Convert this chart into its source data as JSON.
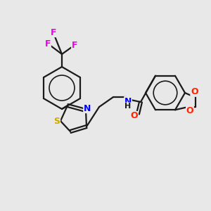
{
  "background_color": "#e8e8e8",
  "bond_color": "#1a1a1a",
  "atom_colors": {
    "F": "#ee00ee",
    "S": "#ccaa00",
    "N": "#0000ff",
    "O": "#ff2200",
    "C": "#1a1a1a"
  },
  "lw": 1.6,
  "figsize": [
    3.0,
    3.0
  ],
  "dpi": 100,
  "xlim": [
    0,
    300
  ],
  "ylim": [
    0,
    300
  ]
}
